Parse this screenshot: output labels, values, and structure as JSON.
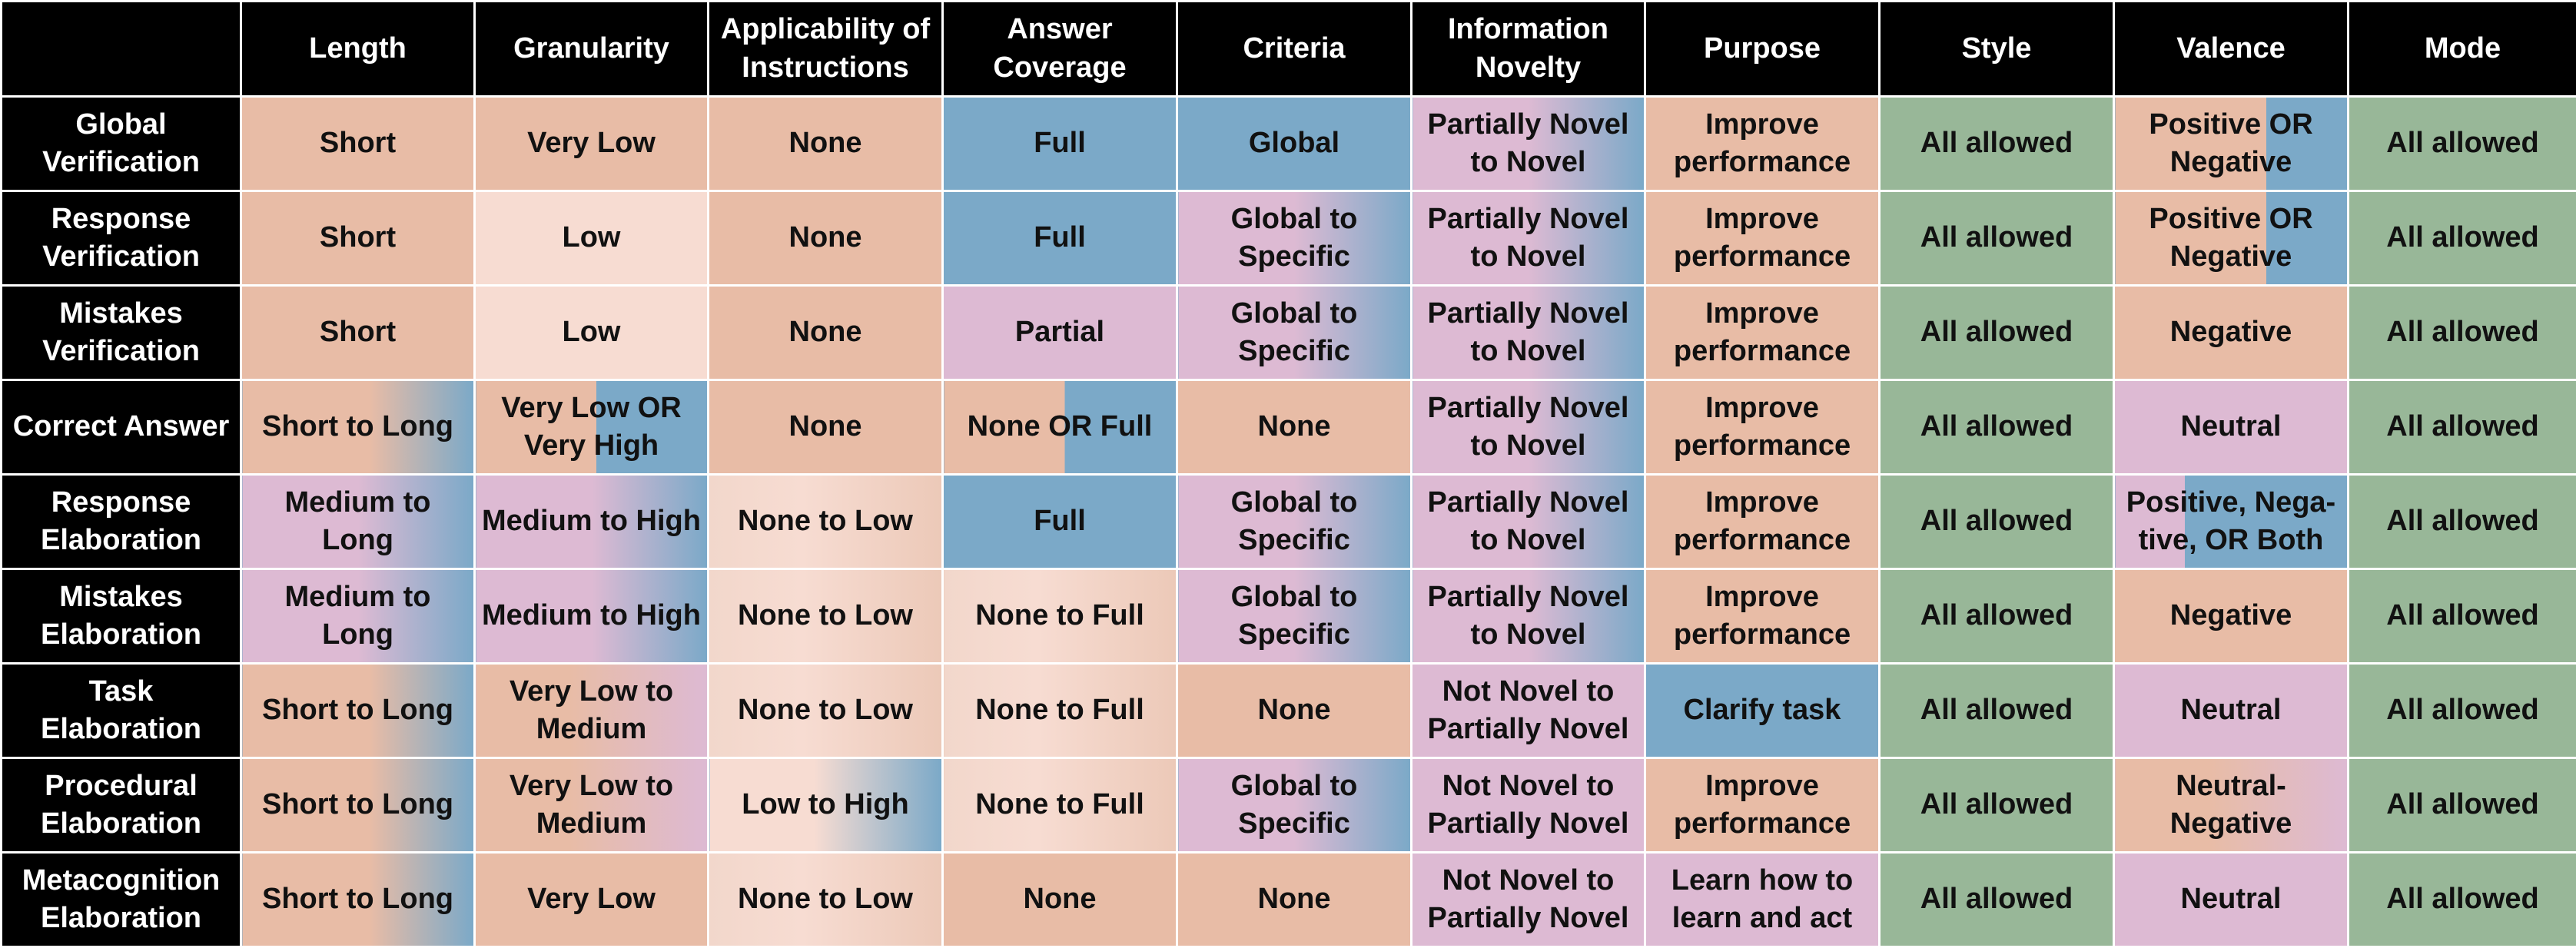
{
  "headers": [
    "",
    "Length",
    "Granularity",
    "Applicability of Instructions",
    "Answer Coverage",
    "Criteria",
    "Information Novelty",
    "Purpose",
    "Style",
    "Valence",
    "Mode"
  ],
  "rows": [
    {
      "label": "Global Verification",
      "cells": [
        "Short",
        "Very Low",
        "None",
        "Full",
        "Global",
        "Partially Novel to Novel",
        "Improve performance",
        "All allowed",
        "Positive OR Negative",
        "All allowed"
      ]
    },
    {
      "label": "Response Verification",
      "cells": [
        "Short",
        "Low",
        "None",
        "Full",
        "Global to Specific",
        "Partially Novel to Novel",
        "Improve performance",
        "All allowed",
        "Positive OR Negative",
        "All allowed"
      ]
    },
    {
      "label": "Mistakes Verification",
      "cells": [
        "Short",
        "Low",
        "None",
        "Partial",
        "Global to Specific",
        "Partially Novel to Novel",
        "Improve performance",
        "All allowed",
        "Negative",
        "All allowed"
      ]
    },
    {
      "label": "Correct Answer",
      "cells": [
        "Short to Long",
        "Very Low OR Very High",
        "None",
        "None OR Full",
        "None",
        "Partially Novel to Novel",
        "Improve performance",
        "All allowed",
        "Neutral",
        "All allowed"
      ]
    },
    {
      "label": "Response Elaboration",
      "cells": [
        "Medium to Long",
        "Medium to High",
        "None to Low",
        "Full",
        "Global to Specific",
        "Partially Novel to Novel",
        "Improve performance",
        "All allowed",
        "Positive, Nega-tive, OR Both",
        "All allowed"
      ]
    },
    {
      "label": "Mistakes Elaboration",
      "cells": [
        "Medium to Long",
        "Medium to High",
        "None to Low",
        "None to Full",
        "Global to Specific",
        "Partially Novel to Novel",
        "Improve performance",
        "All allowed",
        "Negative",
        "All allowed"
      ]
    },
    {
      "label": "Task Elaboration",
      "cells": [
        "Short to Long",
        "Very Low to Medium",
        "None to Low",
        "None to Full",
        "None",
        "Not Novel to Partially Novel",
        "Clarify task",
        "All allowed",
        "Neutral",
        "All allowed"
      ]
    },
    {
      "label": "Procedural Elaboration",
      "cells": [
        "Short to Long",
        "Very Low to Medium",
        "Low to High",
        "None to Full",
        "Global to Specific",
        "Not Novel to Partially Novel",
        "Improve performance",
        "All allowed",
        "Neutral-Negative",
        "All allowed"
      ]
    },
    {
      "label": "Metacognition Elaboration",
      "cells": [
        "Short to Long",
        "Very Low",
        "None to Low",
        "None",
        "None",
        "Not Novel to Partially Novel",
        "Learn how to learn and act",
        "All allowed",
        "Neutral",
        "All allowed"
      ]
    }
  ]
}
